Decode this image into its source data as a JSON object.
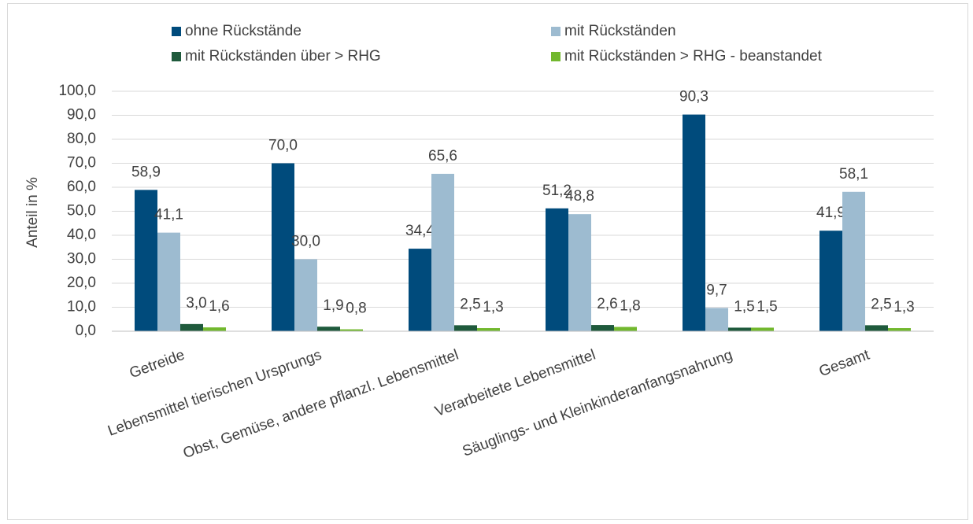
{
  "chart_data": {
    "type": "bar",
    "y_label": "Anteil in %",
    "categories": [
      "Getreide",
      "Lebensmittel tierischen Ursprungs",
      "Obst, Gemüse, andere pflanzl. Lebensmittel",
      "Verarbeitete Lebensmittel",
      "Säuglings- und Kleinkinderanfangsnahrung",
      "Gesamt"
    ],
    "series": [
      {
        "name": "ohne Rückstände",
        "color": "#004b7c",
        "values": [
          58.9,
          70.0,
          34.4,
          51.2,
          90.3,
          41.9
        ],
        "value_labels": [
          "58,9",
          "70,0",
          "34,4",
          "51,2",
          "90,3",
          "41,9"
        ]
      },
      {
        "name": "mit Rückständen",
        "color": "#9dbbd0",
        "values": [
          41.1,
          30.0,
          65.6,
          48.8,
          9.7,
          58.1
        ],
        "value_labels": [
          "41,1",
          "30,0",
          "65,6",
          "48,8",
          "9,7",
          "58,1"
        ]
      },
      {
        "name": "mit Rückständen über > RHG",
        "color": "#1f5a3c",
        "values": [
          3.0,
          1.9,
          2.5,
          2.6,
          1.5,
          2.5
        ],
        "value_labels": [
          "3,0",
          "1,9",
          "2,5",
          "2,6",
          "1,5",
          "2,5"
        ]
      },
      {
        "name": "mit Rückständen > RHG - beanstandet",
        "color": "#72b82e",
        "values": [
          1.6,
          0.8,
          1.3,
          1.8,
          1.5,
          1.3
        ],
        "value_labels": [
          "1,6",
          "0,8",
          "1,3",
          "1,8",
          "1,5",
          "1,3"
        ]
      }
    ],
    "ylim": [
      0,
      100
    ],
    "yticks": [
      {
        "value": 0,
        "label": "0,0"
      },
      {
        "value": 10,
        "label": "10,0"
      },
      {
        "value": 20,
        "label": "20,0"
      },
      {
        "value": 30,
        "label": "30,0"
      },
      {
        "value": 40,
        "label": "40,0"
      },
      {
        "value": 50,
        "label": "50,0"
      },
      {
        "value": 60,
        "label": "60,0"
      },
      {
        "value": 70,
        "label": "70,0"
      },
      {
        "value": 80,
        "label": "80,0"
      },
      {
        "value": 90,
        "label": "90,0"
      },
      {
        "value": 100,
        "label": "100,0"
      }
    ],
    "grid": true
  }
}
